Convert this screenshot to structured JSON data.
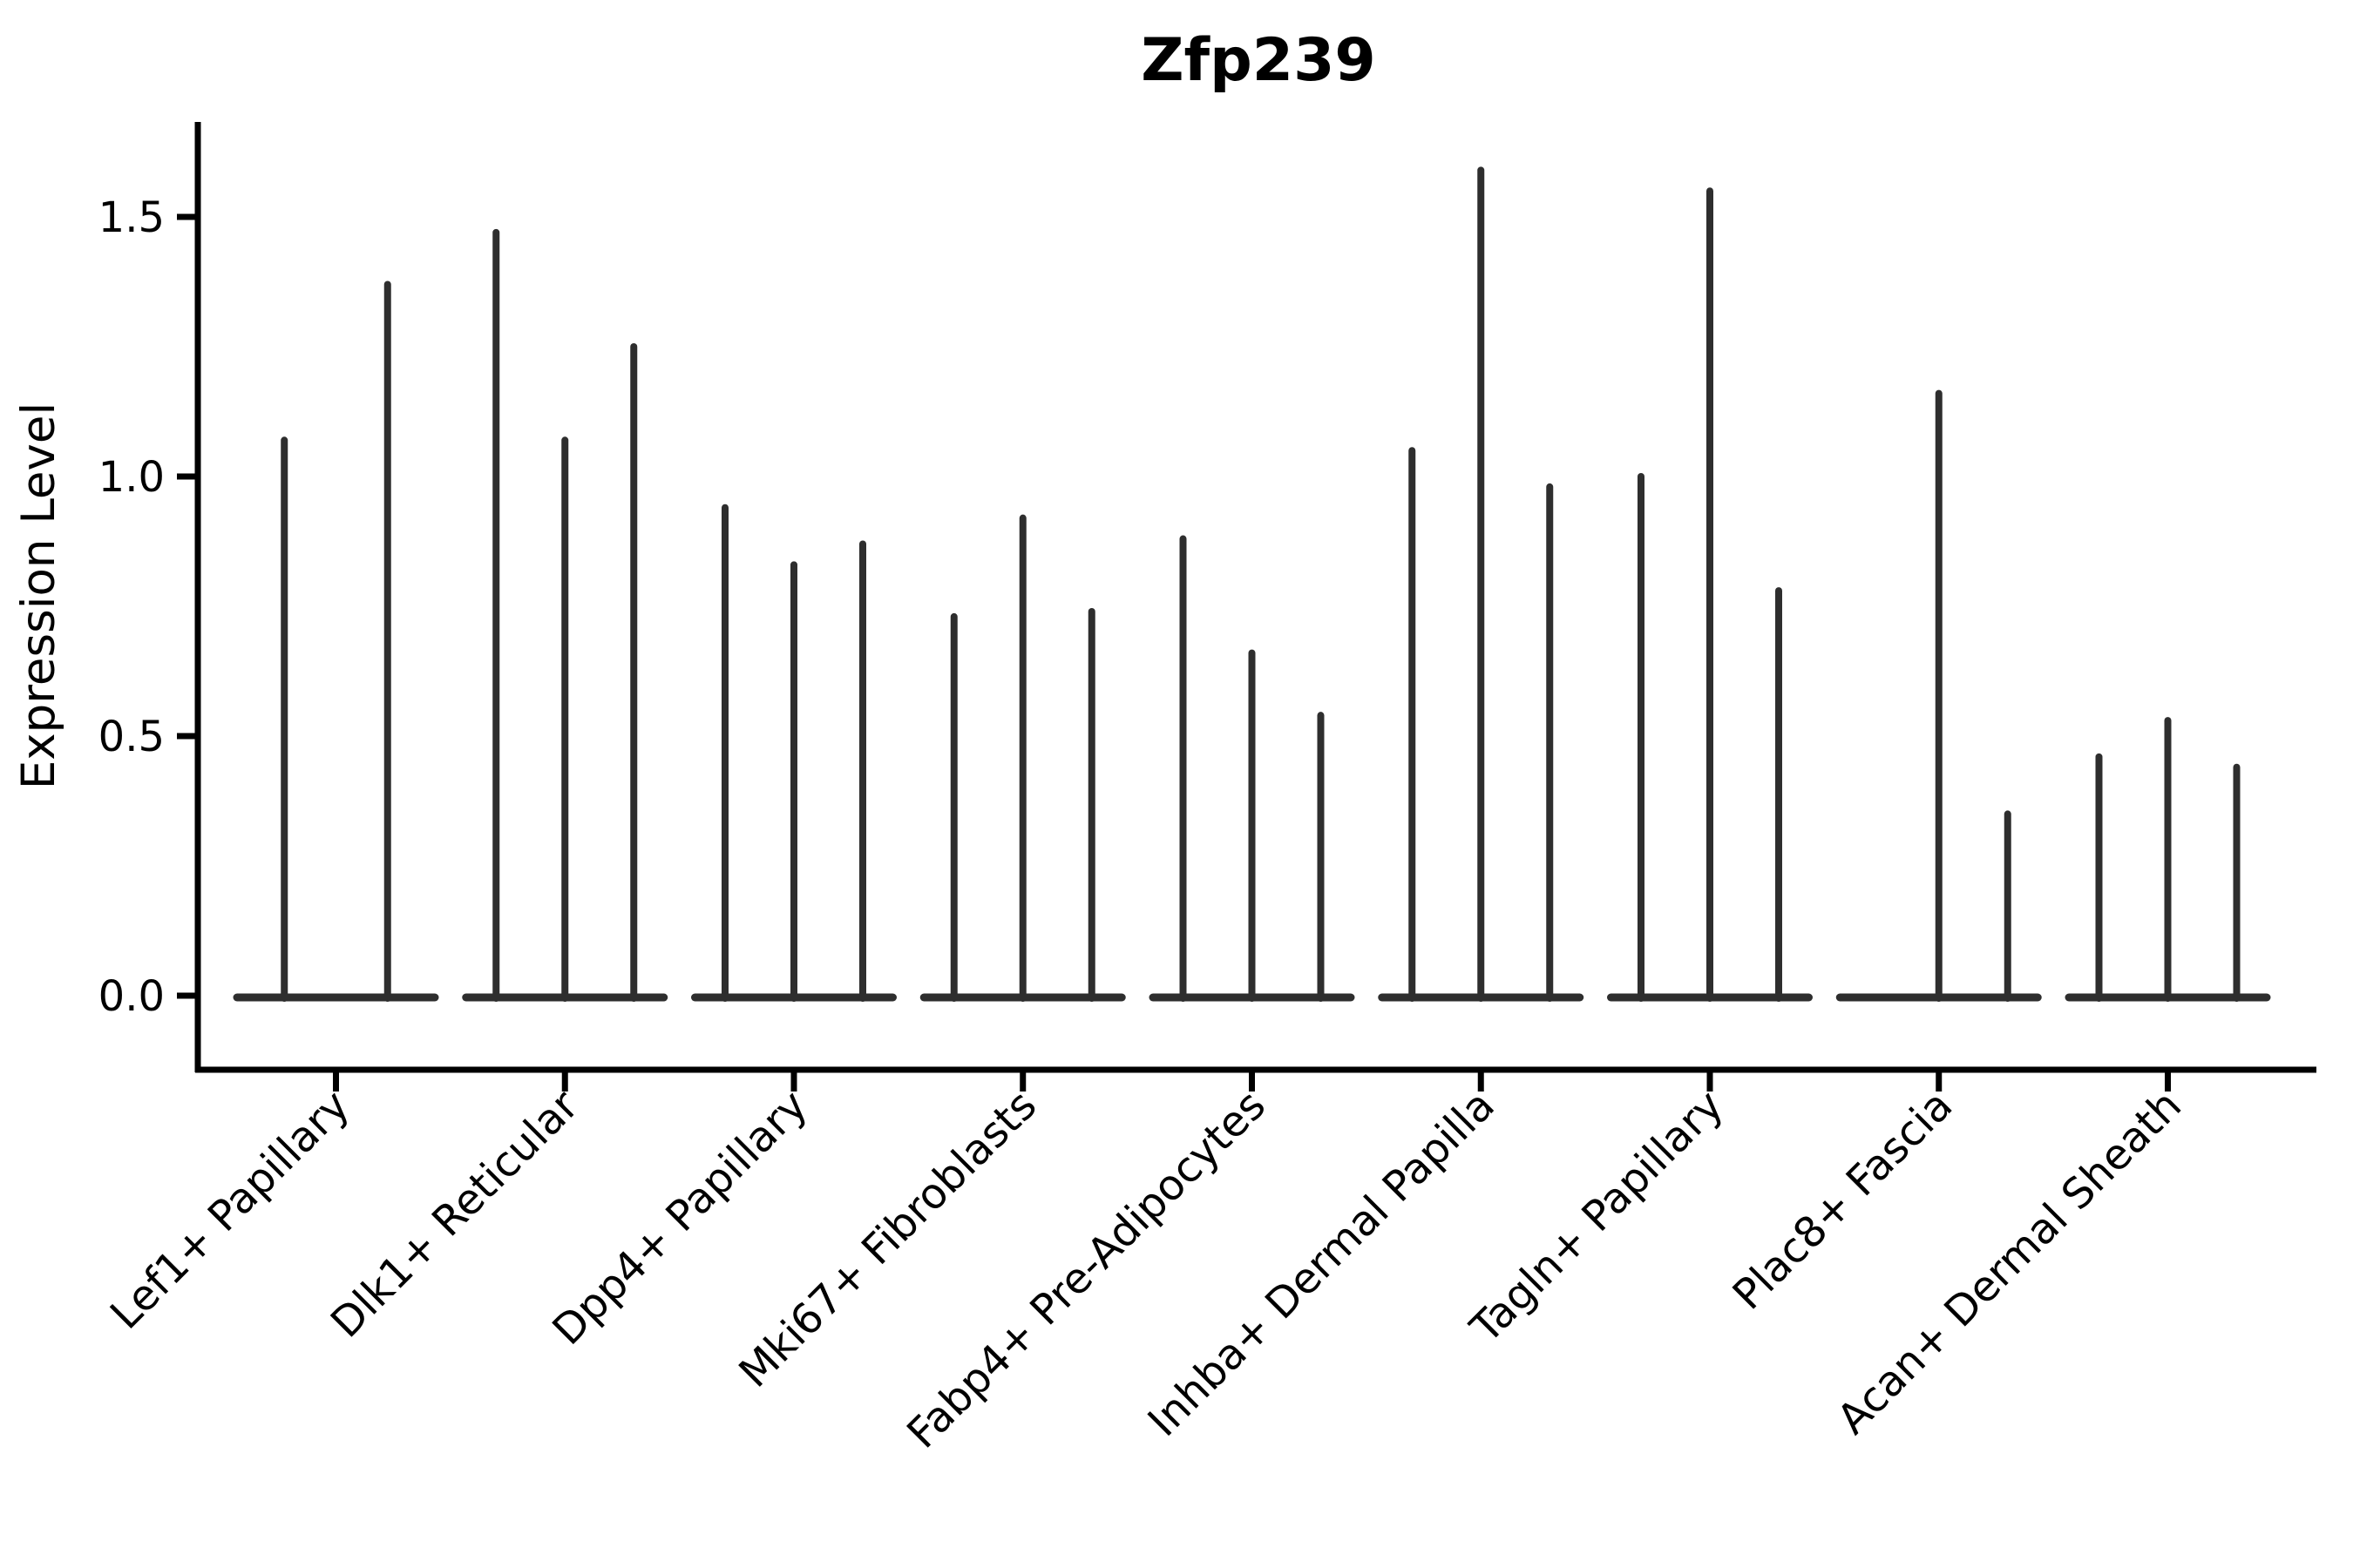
{
  "colors": {
    "violin": "#2e2e2e",
    "axis": "#000000",
    "background": "#ffffff"
  },
  "chart_data": {
    "type": "violin",
    "title": "Zfp239",
    "xlabel": "",
    "ylabel": "Expression Level",
    "ylim": [
      -0.14,
      1.68
    ],
    "grid": false,
    "legend": "none",
    "spines": [
      "left",
      "bottom"
    ],
    "x_label_rotation": 45,
    "description": "Seurat-style stacked violin plot of Zfp239 expression; each category holds 2-3 extremely thin spike violins (max expression per violin) with a flat base at 0.",
    "yticks": [
      {
        "value": 0.0,
        "label": "0.0"
      },
      {
        "value": 0.5,
        "label": "0.5"
      },
      {
        "value": 1.0,
        "label": "1.0"
      },
      {
        "value": 1.5,
        "label": "1.5"
      }
    ],
    "categories": [
      "Lef1+ Papillary",
      "Dlk1+ Reticular",
      "Dpp4+ Papillary",
      "Mki67+ Fibroblasts",
      "Fabp4+ Pre-Adipocytes",
      "Inhba+ Dermal Papilla",
      "Tagln+ Papillary",
      "Plac8+ Fascia",
      "Acan+ Dermal Sheath"
    ],
    "groups": [
      {
        "label": "Lef1+ Papillary",
        "violin_max_values": [
          1.07,
          1.37
        ]
      },
      {
        "label": "Dlk1+ Reticular",
        "violin_max_values": [
          1.47,
          1.07,
          1.25
        ]
      },
      {
        "label": "Dpp4+ Papillary",
        "violin_max_values": [
          0.94,
          0.83,
          0.87
        ]
      },
      {
        "label": "Mki67+ Fibroblasts",
        "violin_max_values": [
          0.73,
          0.92,
          0.74
        ]
      },
      {
        "label": "Fabp4+ Pre-Adipocytes",
        "violin_max_values": [
          0.88,
          0.66,
          0.54
        ]
      },
      {
        "label": "Inhba+ Dermal Papilla",
        "violin_max_values": [
          1.05,
          1.59,
          0.98
        ]
      },
      {
        "label": "Tagln+ Papillary",
        "violin_max_values": [
          1.0,
          1.55,
          0.78
        ]
      },
      {
        "label": "Plac8+ Fascia",
        "violin_max_values": [
          0.0,
          1.16,
          0.35
        ]
      },
      {
        "label": "Acan+ Dermal Sheath",
        "violin_max_values": [
          0.46,
          0.53,
          0.44
        ]
      }
    ]
  }
}
